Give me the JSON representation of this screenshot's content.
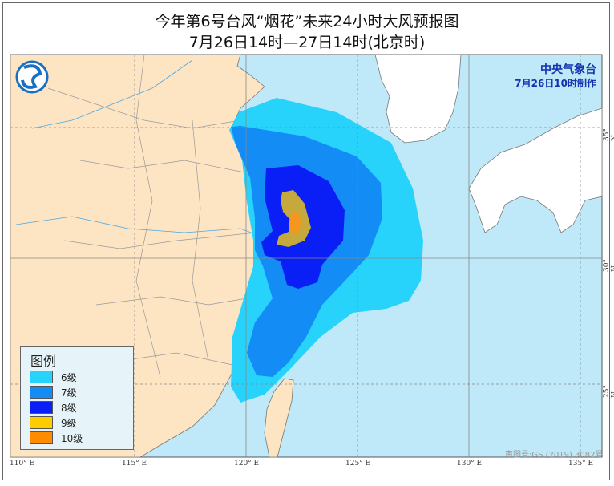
{
  "title": {
    "line1": "今年第6号台风“烟花”未来24小时大风预报图",
    "line2": "7月26日14时—27日14时(北京时)"
  },
  "issuer": {
    "name": "中央气象台",
    "made": "7月26日10时制作",
    "logo": "cma-logo"
  },
  "legend": {
    "title": "图例",
    "items": [
      {
        "label": "6级",
        "color": "#27d3fb"
      },
      {
        "label": "7级",
        "color": "#138df5"
      },
      {
        "label": "8级",
        "color": "#0a1ff5"
      },
      {
        "label": "9级",
        "color": "#ffcc00"
      },
      {
        "label": "10级",
        "color": "#ff8c00"
      }
    ]
  },
  "axes": {
    "lon_labels": [
      "110° E",
      "115° E",
      "120° E",
      "125° E",
      "130° E",
      "135° E"
    ],
    "lat_labels": [
      "35° N",
      "30° N",
      "25° N"
    ]
  },
  "approval": "审图号:GS (2019) 3082号",
  "colors": {
    "land": "#fde5c4",
    "sea": "#bfe9f9",
    "foreign_land": "#ffffff",
    "map_core_9": "#c6a93c"
  }
}
